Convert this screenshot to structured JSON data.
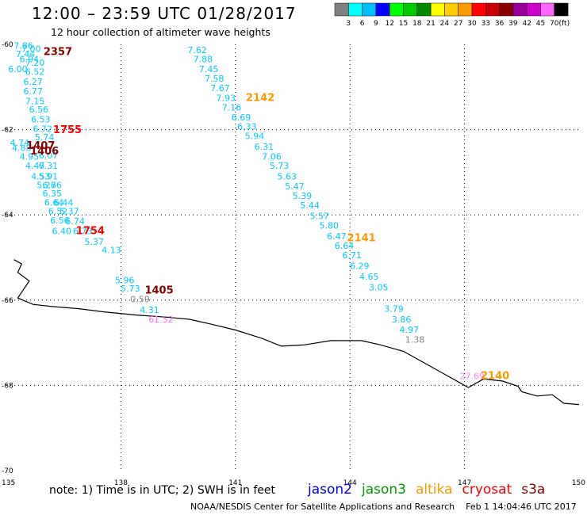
{
  "header": {
    "title": "12:00 – 23:59 UTC 01/28/2017",
    "subtitle": "12 hour collection of altimeter wave heights"
  },
  "colors": {
    "background": "#ffffff",
    "grid": "#000000",
    "coastline": "#000000"
  },
  "legend": {
    "unit": "(ft)",
    "bins": [
      {
        "label": "3",
        "color": "#808080"
      },
      {
        "label": "6",
        "color": "#00ffff"
      },
      {
        "label": "9",
        "color": "#00bfff"
      },
      {
        "label": "12",
        "color": "#0000ff"
      },
      {
        "label": "15",
        "color": "#00ff00"
      },
      {
        "label": "18",
        "color": "#00cc00"
      },
      {
        "label": "21",
        "color": "#008800"
      },
      {
        "label": "24",
        "color": "#ffff00"
      },
      {
        "label": "27",
        "color": "#ffcc00"
      },
      {
        "label": "30",
        "color": "#ff9900"
      },
      {
        "label": "33",
        "color": "#ff0000"
      },
      {
        "label": "36",
        "color": "#cc0000"
      },
      {
        "label": "39",
        "color": "#880000"
      },
      {
        "label": "42",
        "color": "#990099"
      },
      {
        "label": "45",
        "color": "#cc00cc"
      },
      {
        "label": "70",
        "color": "#ff66ff"
      },
      {
        "label": "",
        "color": "#000000"
      }
    ]
  },
  "axes": {
    "lon_ticks": [
      "135",
      "138",
      "141",
      "144",
      "147",
      "150"
    ],
    "lat_ticks": [
      "-60",
      "-62",
      "-64",
      "-66",
      "-68",
      "-70"
    ]
  },
  "map_extent": {
    "lon": [
      135,
      150
    ],
    "lat": [
      -60,
      -70
    ]
  },
  "coastline": [
    [
      135.2,
      -65.05
    ],
    [
      135.4,
      -65.15
    ],
    [
      135.3,
      -65.35
    ],
    [
      135.6,
      -65.55
    ],
    [
      135.45,
      -65.75
    ],
    [
      135.3,
      -65.95
    ],
    [
      135.7,
      -66.1
    ],
    [
      136.2,
      -66.15
    ],
    [
      136.9,
      -66.2
    ],
    [
      137.6,
      -66.28
    ],
    [
      138.4,
      -66.35
    ],
    [
      139.2,
      -66.4
    ],
    [
      139.8,
      -66.45
    ],
    [
      140.3,
      -66.55
    ],
    [
      141.0,
      -66.7
    ],
    [
      141.7,
      -66.9
    ],
    [
      142.2,
      -67.08
    ],
    [
      142.8,
      -67.05
    ],
    [
      143.5,
      -66.95
    ],
    [
      144.3,
      -66.95
    ],
    [
      144.8,
      -67.05
    ],
    [
      145.4,
      -67.2
    ],
    [
      146.0,
      -67.5
    ],
    [
      146.5,
      -67.75
    ],
    [
      146.9,
      -67.95
    ],
    [
      147.1,
      -68.05
    ],
    [
      147.5,
      -67.85
    ],
    [
      148.0,
      -67.9
    ],
    [
      148.4,
      -68.02
    ],
    [
      148.5,
      -68.15
    ],
    [
      148.9,
      -68.25
    ],
    [
      149.3,
      -68.22
    ],
    [
      149.6,
      -68.42
    ],
    [
      150.0,
      -68.45
    ]
  ],
  "wave_labels": [
    {
      "text": "7.86",
      "lon": 135.45,
      "lat": -60.1,
      "color": "#00ccff"
    },
    {
      "text": "7.00",
      "lon": 135.65,
      "lat": -60.18,
      "color": "#00ccff"
    },
    {
      "text": "7.44",
      "lon": 135.5,
      "lat": -60.3,
      "color": "#00ccff"
    },
    {
      "text": "6.94",
      "lon": 135.6,
      "lat": -60.42,
      "color": "#00ccff"
    },
    {
      "text": "7.20",
      "lon": 135.75,
      "lat": -60.5,
      "color": "#00ccff"
    },
    {
      "text": "6.00",
      "lon": 135.3,
      "lat": -60.65,
      "color": "#00ccff"
    },
    {
      "text": "6.52",
      "lon": 135.75,
      "lat": -60.72,
      "color": "#00ccff"
    },
    {
      "text": "6.27",
      "lon": 135.7,
      "lat": -60.95,
      "color": "#00ccff"
    },
    {
      "text": "6.77",
      "lon": 135.7,
      "lat": -61.17,
      "color": "#00ccff"
    },
    {
      "text": "7.15",
      "lon": 135.75,
      "lat": -61.4,
      "color": "#00ccff"
    },
    {
      "text": "6.56",
      "lon": 135.85,
      "lat": -61.6,
      "color": "#00ccff"
    },
    {
      "text": "6.53",
      "lon": 135.9,
      "lat": -61.83,
      "color": "#00ccff"
    },
    {
      "text": "6.72",
      "lon": 135.95,
      "lat": -62.05,
      "color": "#00ccff"
    },
    {
      "text": "5.74",
      "lon": 136.0,
      "lat": -62.25,
      "color": "#00ccff"
    },
    {
      "text": "4.74",
      "lon": 135.35,
      "lat": -62.38,
      "color": "#00ccff"
    },
    {
      "text": "4.88",
      "lon": 135.4,
      "lat": -62.5,
      "color": "#00ccff"
    },
    {
      "text": "4.95",
      "lon": 135.6,
      "lat": -62.7,
      "color": "#00ccff"
    },
    {
      "text": "6.07",
      "lon": 136.1,
      "lat": -62.68,
      "color": "#00ccff"
    },
    {
      "text": "4.47",
      "lon": 135.75,
      "lat": -62.92,
      "color": "#00ccff"
    },
    {
      "text": "6.31",
      "lon": 136.1,
      "lat": -62.92,
      "color": "#00ccff"
    },
    {
      "text": "4.53",
      "lon": 135.9,
      "lat": -63.17,
      "color": "#00ccff"
    },
    {
      "text": "5.91",
      "lon": 136.1,
      "lat": -63.17,
      "color": "#00ccff"
    },
    {
      "text": "5.26",
      "lon": 136.05,
      "lat": -63.37,
      "color": "#00ccff"
    },
    {
      "text": "6.76",
      "lon": 136.2,
      "lat": -63.37,
      "color": "#00ccff"
    },
    {
      "text": "6.35",
      "lon": 136.2,
      "lat": -63.57,
      "color": "#00ccff"
    },
    {
      "text": "6.64",
      "lon": 136.25,
      "lat": -63.78,
      "color": "#00ccff"
    },
    {
      "text": "6.44",
      "lon": 136.5,
      "lat": -63.78,
      "color": "#00ccff"
    },
    {
      "text": "6.52",
      "lon": 136.35,
      "lat": -63.99,
      "color": "#00ccff"
    },
    {
      "text": "5.37",
      "lon": 136.65,
      "lat": -63.99,
      "color": "#00ccff"
    },
    {
      "text": "6.56",
      "lon": 136.4,
      "lat": -64.2,
      "color": "#00ccff"
    },
    {
      "text": "6.74",
      "lon": 136.8,
      "lat": -64.22,
      "color": "#00ccff"
    },
    {
      "text": "6.40",
      "lon": 136.45,
      "lat": -64.45,
      "color": "#00ccff"
    },
    {
      "text": "6.73",
      "lon": 137.0,
      "lat": -64.45,
      "color": "#00ccff"
    },
    {
      "text": "5.37",
      "lon": 137.3,
      "lat": -64.7,
      "color": "#00ccff"
    },
    {
      "text": "4.13",
      "lon": 137.75,
      "lat": -64.9,
      "color": "#00ccff"
    },
    {
      "text": "5.96",
      "lon": 138.1,
      "lat": -65.6,
      "color": "#00ccff"
    },
    {
      "text": "5.73",
      "lon": 138.25,
      "lat": -65.8,
      "color": "#00ccff"
    },
    {
      "text": "0.59",
      "lon": 138.5,
      "lat": -66.05,
      "color": "#888888"
    },
    {
      "text": "4.31",
      "lon": 138.75,
      "lat": -66.3,
      "color": "#00ccff"
    },
    {
      "text": "61.52",
      "lon": 139.05,
      "lat": -66.52,
      "color": "#ff66ff"
    },
    {
      "text": "7.62",
      "lon": 140.0,
      "lat": -60.2,
      "color": "#00ccff"
    },
    {
      "text": "7.88",
      "lon": 140.15,
      "lat": -60.42,
      "color": "#00ccff"
    },
    {
      "text": "7.45",
      "lon": 140.3,
      "lat": -60.65,
      "color": "#00ccff"
    },
    {
      "text": "7.58",
      "lon": 140.45,
      "lat": -60.87,
      "color": "#00ccff"
    },
    {
      "text": "7.67",
      "lon": 140.6,
      "lat": -61.1,
      "color": "#00ccff"
    },
    {
      "text": "7.93",
      "lon": 140.75,
      "lat": -61.33,
      "color": "#00ccff"
    },
    {
      "text": "7.16",
      "lon": 140.9,
      "lat": -61.55,
      "color": "#00ccff"
    },
    {
      "text": "6.69",
      "lon": 141.15,
      "lat": -61.78,
      "color": "#00ccff"
    },
    {
      "text": "6.33",
      "lon": 141.3,
      "lat": -62.0,
      "color": "#00ccff"
    },
    {
      "text": "5.94",
      "lon": 141.5,
      "lat": -62.22,
      "color": "#00ccff"
    },
    {
      "text": "6.31",
      "lon": 141.75,
      "lat": -62.47,
      "color": "#00ccff"
    },
    {
      "text": "7.06",
      "lon": 141.95,
      "lat": -62.7,
      "color": "#00ccff"
    },
    {
      "text": "5.73",
      "lon": 142.15,
      "lat": -62.92,
      "color": "#00ccff"
    },
    {
      "text": "5.63",
      "lon": 142.35,
      "lat": -63.17,
      "color": "#00ccff"
    },
    {
      "text": "5.47",
      "lon": 142.55,
      "lat": -63.4,
      "color": "#00ccff"
    },
    {
      "text": "5.39",
      "lon": 142.75,
      "lat": -63.62,
      "color": "#00ccff"
    },
    {
      "text": "5.44",
      "lon": 142.95,
      "lat": -63.85,
      "color": "#00ccff"
    },
    {
      "text": "5.57",
      "lon": 143.2,
      "lat": -64.1,
      "color": "#00ccff"
    },
    {
      "text": "5.80",
      "lon": 143.45,
      "lat": -64.32,
      "color": "#00ccff"
    },
    {
      "text": "6.47",
      "lon": 143.65,
      "lat": -64.57,
      "color": "#00ccff"
    },
    {
      "text": "6.64",
      "lon": 143.85,
      "lat": -64.8,
      "color": "#00ccff"
    },
    {
      "text": "6.71",
      "lon": 144.05,
      "lat": -65.02,
      "color": "#00ccff"
    },
    {
      "text": "6.29",
      "lon": 144.25,
      "lat": -65.27,
      "color": "#00ccff"
    },
    {
      "text": "4.65",
      "lon": 144.5,
      "lat": -65.52,
      "color": "#00ccff"
    },
    {
      "text": "3.05",
      "lon": 144.75,
      "lat": -65.77,
      "color": "#00ccff"
    },
    {
      "text": "3.79",
      "lon": 145.15,
      "lat": -66.27,
      "color": "#00ccff"
    },
    {
      "text": "3.86",
      "lon": 145.35,
      "lat": -66.52,
      "color": "#00ccff"
    },
    {
      "text": "4.97",
      "lon": 145.55,
      "lat": -66.77,
      "color": "#00ccff"
    },
    {
      "text": "1.38",
      "lon": 145.7,
      "lat": -67.0,
      "color": "#888888"
    },
    {
      "text": "27.69",
      "lon": 147.2,
      "lat": -67.85,
      "color": "#ff88ff"
    }
  ],
  "time_labels": [
    {
      "text": "2357",
      "lon": 136.35,
      "lat": -60.25,
      "color": "#880000"
    },
    {
      "text": "1755",
      "lon": 136.6,
      "lat": -62.08,
      "color": "#ff0000"
    },
    {
      "text": "1407",
      "lon": 135.9,
      "lat": -62.45,
      "color": "#880000"
    },
    {
      "text": "1406",
      "lon": 136.0,
      "lat": -62.58,
      "color": "#880000"
    },
    {
      "text": "1754",
      "lon": 137.2,
      "lat": -64.45,
      "color": "#ff0000"
    },
    {
      "text": "1405",
      "lon": 139.0,
      "lat": -65.85,
      "color": "#880000"
    },
    {
      "text": "2142",
      "lon": 141.65,
      "lat": -61.33,
      "color": "#ff9900"
    },
    {
      "text": "2141",
      "lon": 144.3,
      "lat": -64.62,
      "color": "#ff9900"
    },
    {
      "text": "2140",
      "lon": 147.8,
      "lat": -67.85,
      "color": "#ff9900"
    }
  ],
  "footer": {
    "note": "note: 1) Time is in UTC; 2) SWH is in feet",
    "satellites": [
      {
        "name": "jason2",
        "color": "#0000ff"
      },
      {
        "name": "jason3",
        "color": "#009900"
      },
      {
        "name": "altika",
        "color": "#ff9900"
      },
      {
        "name": "cryosat",
        "color": "#ff0000"
      },
      {
        "name": "s3a",
        "color": "#880000"
      }
    ],
    "credit": "NOAA/NESDIS Center for Satellite Applications and Research",
    "timestamp": "Feb  1 14:04:46 UTC 2017"
  }
}
